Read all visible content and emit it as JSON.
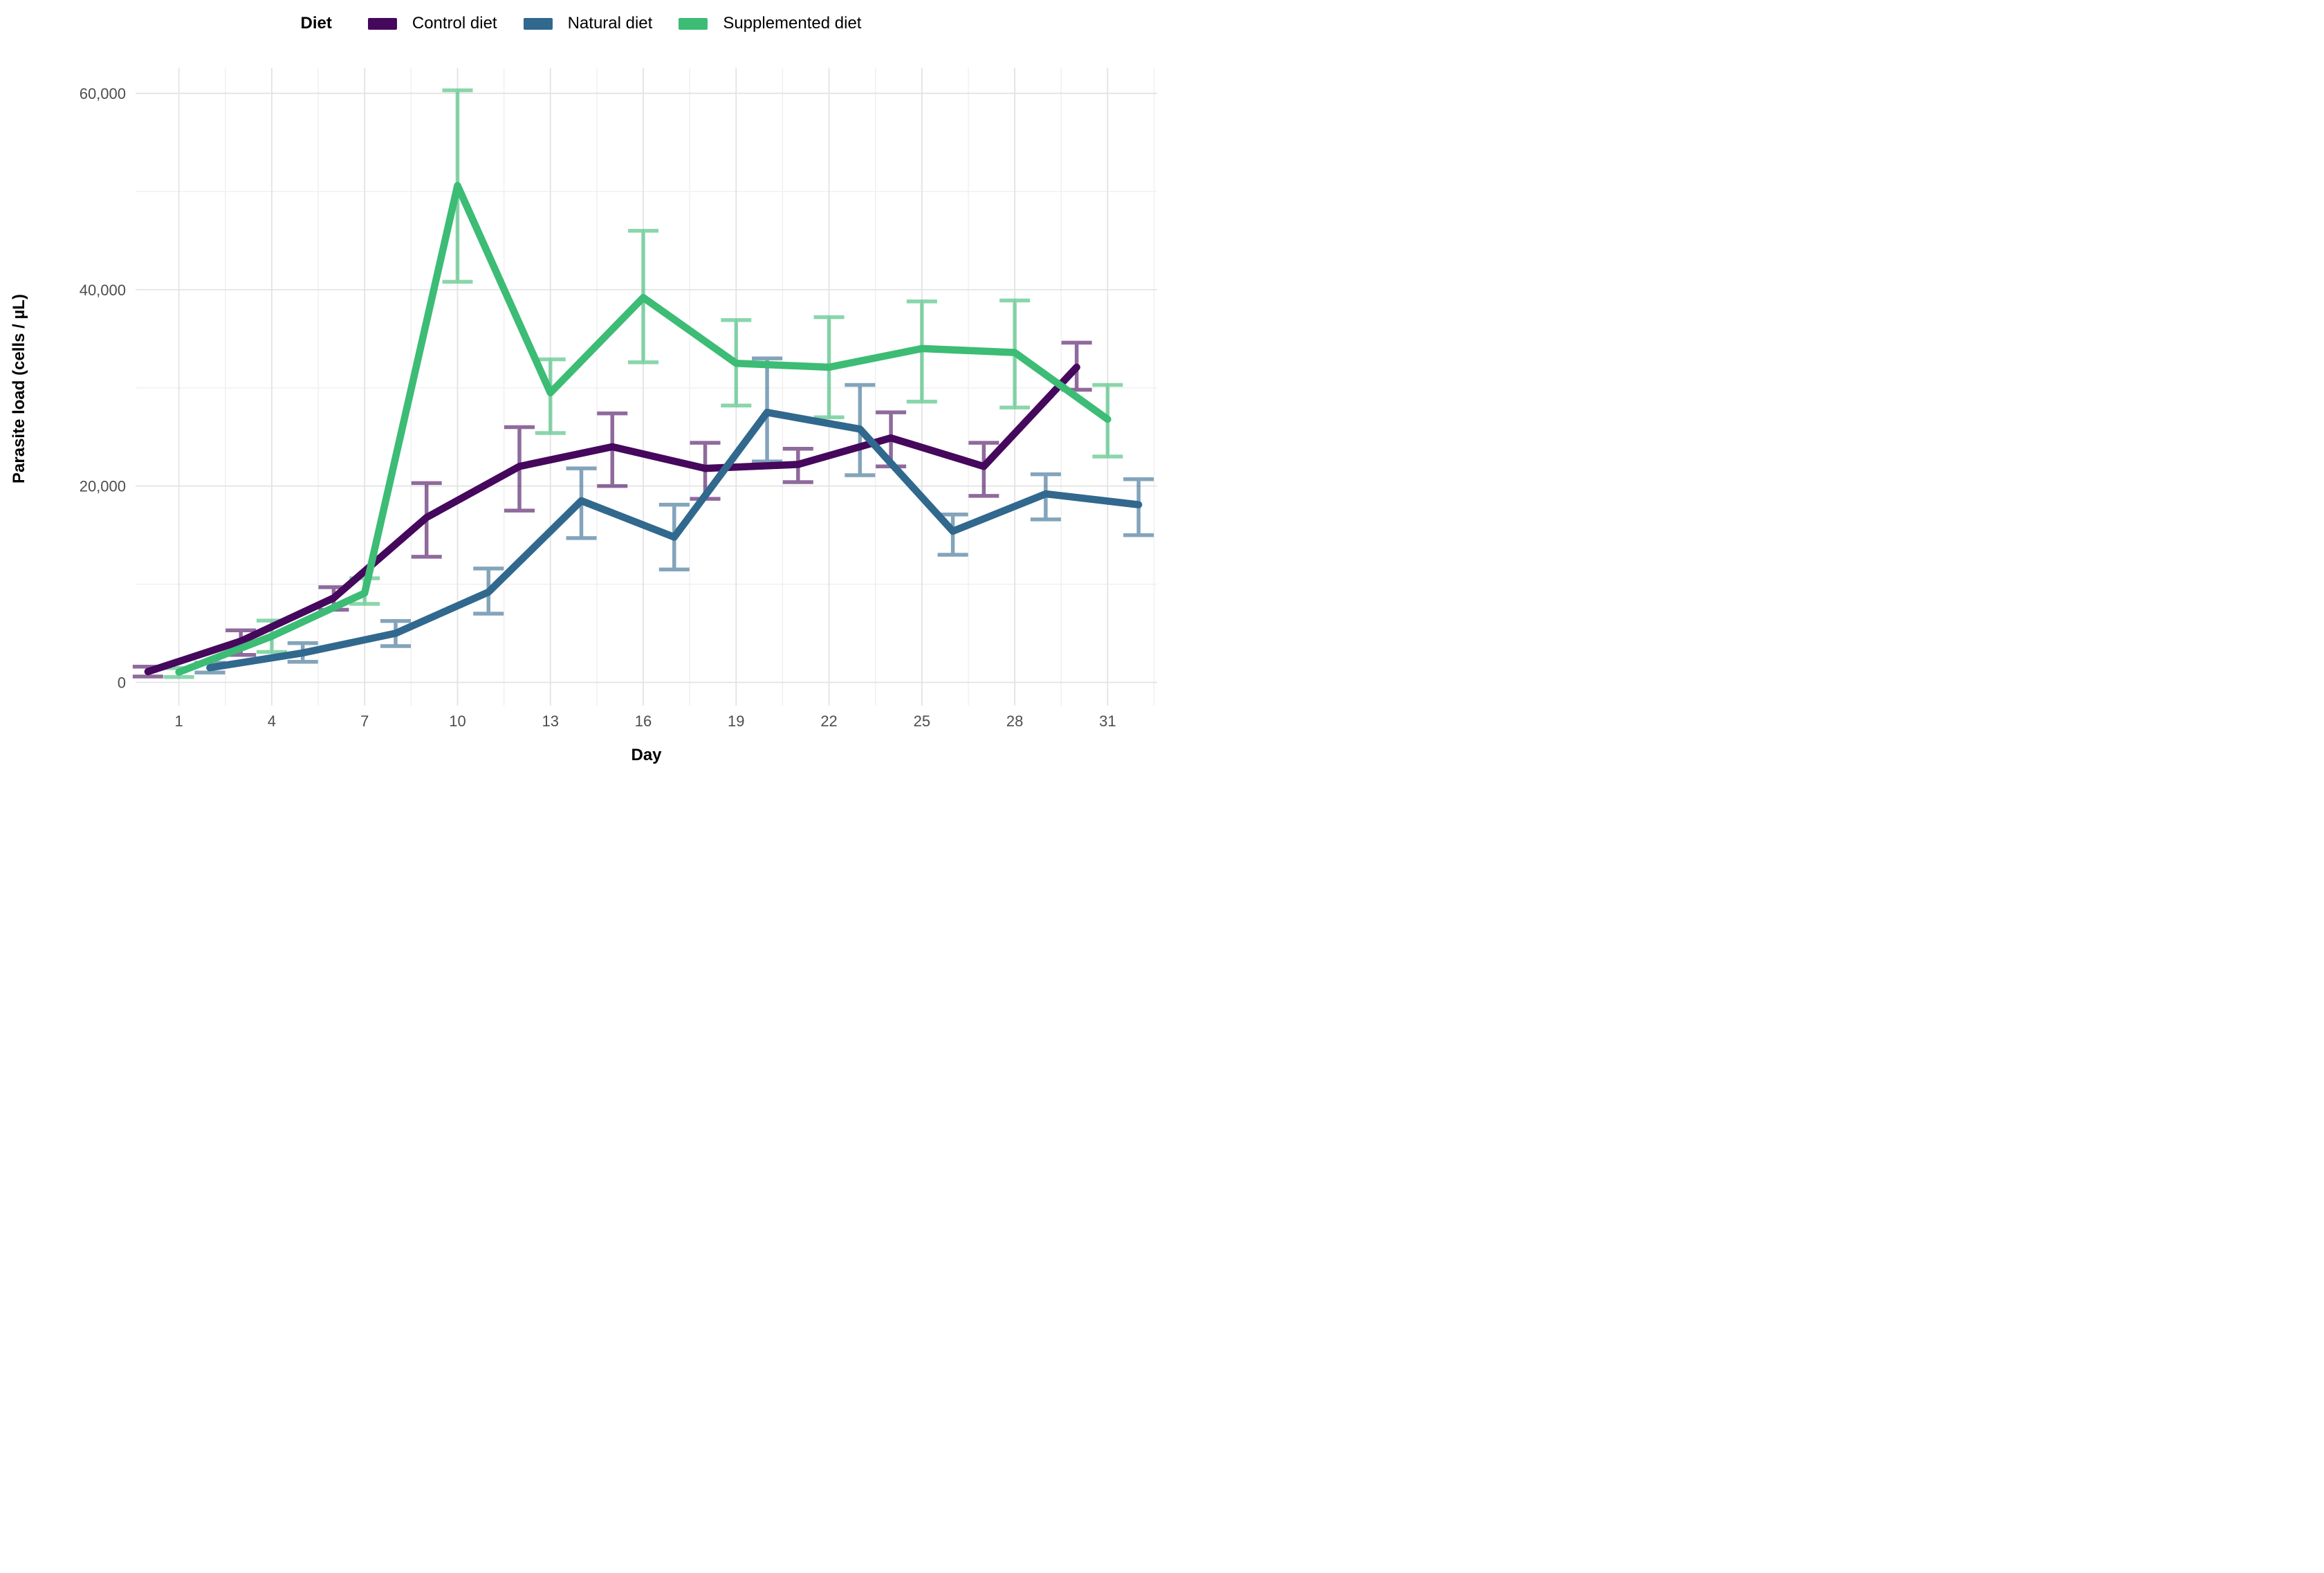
{
  "legend": {
    "title": "Diet",
    "items": [
      "Control diet",
      "Natural diet",
      "Supplemented diet"
    ]
  },
  "y_axis": {
    "title": "Parasite load (cells / µL)",
    "ticks": [
      {
        "value": 0,
        "label": "0"
      },
      {
        "value": 20000,
        "label": "20,000"
      },
      {
        "value": 40000,
        "label": "40,000"
      },
      {
        "value": 60000,
        "label": "60,000"
      }
    ],
    "minor_ticks": [
      10000,
      30000,
      50000
    ],
    "range": [
      -2360,
      62600
    ]
  },
  "x_axis": {
    "title": "Day",
    "ticks": [
      1,
      4,
      7,
      10,
      13,
      16,
      19,
      22,
      25,
      28,
      31
    ],
    "minor_ticks": [
      2.5,
      5.5,
      8.5,
      11.5,
      14.5,
      17.5,
      20.5,
      23.5,
      26.5,
      29.5,
      32.5
    ],
    "range": [
      -0.4,
      32.6
    ]
  },
  "chart_data": {
    "type": "line",
    "title": "",
    "xlabel": "Day",
    "ylabel": "Parasite load (cells / µL)",
    "legend_title": "Diet",
    "legend_position": "top",
    "grid": true,
    "x": [
      1,
      4,
      7,
      10,
      13,
      16,
      19,
      22,
      25,
      28,
      31
    ],
    "ylim": [
      0,
      60000
    ],
    "error_bar_opacity": 0.6,
    "series": [
      {
        "name": "Control diet",
        "color": "#45085C",
        "dodge": -1,
        "mean": [
          1100,
          4200,
          8600,
          16800,
          22000,
          24000,
          21800,
          22200,
          24900,
          22000,
          32100
        ],
        "lower": [
          600,
          2800,
          7400,
          12800,
          17500,
          20000,
          18700,
          20400,
          22000,
          19000,
          29800
        ],
        "upper": [
          1600,
          5300,
          9700,
          20300,
          26000,
          27400,
          24400,
          23800,
          27500,
          24400,
          34600
        ]
      },
      {
        "name": "Natural diet",
        "color": "#31688E",
        "dodge": 1,
        "mean": [
          1500,
          3000,
          5000,
          9200,
          18500,
          14800,
          27500,
          25800,
          15400,
          19200,
          18100
        ],
        "lower": [
          1000,
          2100,
          3700,
          7000,
          14700,
          11500,
          22500,
          21100,
          13000,
          16600,
          15000
        ],
        "upper": [
          2000,
          4000,
          6250,
          11600,
          21800,
          18100,
          33000,
          30300,
          17100,
          21200,
          20700
        ]
      },
      {
        "name": "Supplemented diet",
        "color": "#3CBC75",
        "dodge": 0,
        "mean": [
          1050,
          4700,
          9100,
          50600,
          29500,
          39200,
          32500,
          32100,
          34000,
          33600,
          26800
        ],
        "lower": [
          550,
          3100,
          8000,
          40800,
          25400,
          32600,
          28200,
          27000,
          28600,
          28000,
          23000
        ],
        "upper": [
          1450,
          6300,
          10600,
          60300,
          32900,
          46000,
          36900,
          37200,
          38800,
          38900,
          30300
        ]
      }
    ]
  },
  "style": {
    "grid_major_color": "#e3e3e3",
    "grid_minor_color": "#efefef",
    "tick_label_color": "#4d4d4d"
  }
}
